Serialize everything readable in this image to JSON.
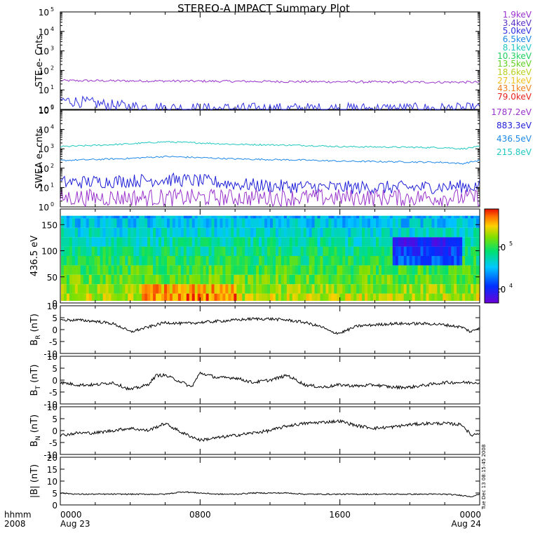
{
  "title": "STEREO-A IMPACT Summary Plot",
  "stamp": "Tue Dec 13 08:15:45 2008",
  "xaxis": {
    "row1_label": "hhmm",
    "row2_label": "2008",
    "ticks": [
      {
        "t": 0,
        "time": "0000",
        "date": "Aug 23"
      },
      {
        "t": 8,
        "time": "0800",
        "date": ""
      },
      {
        "t": 16,
        "time": "1600",
        "date": ""
      },
      {
        "t": 24,
        "time": "0000",
        "date": "Aug 24"
      }
    ]
  },
  "panels": {
    "ste": {
      "ylabel": "STE e- Cnts",
      "ytick_labels": [
        "10",
        "10",
        "10",
        "10",
        "10",
        "10"
      ],
      "ytick_exps": [
        "0",
        "1",
        "2",
        "3",
        "4",
        "5"
      ]
    },
    "swea": {
      "ylabel": "SWEA e- cnts",
      "ytick_labels": [
        "10",
        "10",
        "10",
        "10",
        "10",
        "10"
      ],
      "ytick_exps": [
        "0",
        "1",
        "2",
        "3",
        "4",
        "5"
      ]
    },
    "pad": {
      "ylabel": "436.5 eV",
      "yticks": [
        "0",
        "50",
        "100",
        "150"
      ],
      "colorbar_labels": [
        "10",
        "10"
      ],
      "colorbar_exps": [
        "5",
        "4"
      ]
    },
    "br": {
      "ylabel_main": "B",
      "ylabel_sub": "R",
      "ylabel_unit": " (nT)",
      "yticks": [
        "10",
        "5",
        "0",
        "-5",
        "-10"
      ]
    },
    "bt": {
      "ylabel_main": "B",
      "ylabel_sub": "T",
      "ylabel_unit": " (nT)",
      "yticks": [
        "10",
        "5",
        "0",
        "-5",
        "-10"
      ]
    },
    "bn": {
      "ylabel_main": "B",
      "ylabel_sub": "N",
      "ylabel_unit": " (nT)",
      "yticks": [
        "10",
        "5",
        "0",
        "-5",
        "-10"
      ]
    },
    "bmag": {
      "ylabel": "|B| (nT)",
      "yticks": [
        "20",
        "15",
        "10",
        "5",
        "0"
      ]
    }
  },
  "legend_ste": [
    {
      "label": "1.9keV",
      "color": "#9933cc"
    },
    {
      "label": "3.4keV",
      "color": "#5a2ec8"
    },
    {
      "label": "5.0keV",
      "color": "#3030e0"
    },
    {
      "label": "6.5keV",
      "color": "#1e88e8"
    },
    {
      "label": "8.1keV",
      "color": "#20c8c0"
    },
    {
      "label": "10.3keV",
      "color": "#20d060"
    },
    {
      "label": "13.5keV",
      "color": "#60d020"
    },
    {
      "label": "18.6keV",
      "color": "#b8d020"
    },
    {
      "label": "27.1keV",
      "color": "#f0c020"
    },
    {
      "label": "43.1keV",
      "color": "#f08020"
    },
    {
      "label": "79.0keV",
      "color": "#e82020"
    }
  ],
  "legend_swea": [
    {
      "label": "1787.2eV",
      "color": "#9933cc"
    },
    {
      "label": "883.3eV",
      "color": "#2020d8"
    },
    {
      "label": "436.5eV",
      "color": "#1e88e8"
    },
    {
      "label": "215.8eV",
      "color": "#20c8c0"
    }
  ],
  "chart_data": [
    {
      "type": "line",
      "name": "STE electron counts",
      "x_hours": [
        0,
        24
      ],
      "yscale": "log",
      "ylim_exp": [
        0,
        5
      ],
      "series": [
        {
          "name": "1.9keV",
          "color": "#9933cc",
          "x": [
            0,
            4,
            8,
            12,
            16,
            20,
            24
          ],
          "values": [
            30,
            29,
            28,
            27,
            26,
            25,
            25
          ]
        },
        {
          "name": "3.4keV",
          "color": "#3030e0",
          "x": [
            0,
            1,
            2,
            3,
            4,
            6,
            8,
            12,
            16,
            20,
            24
          ],
          "values": [
            3,
            2.5,
            2,
            1.6,
            1.4,
            1.2,
            1.1,
            1.1,
            1.1,
            1.1,
            1.1
          ]
        }
      ]
    },
    {
      "type": "line",
      "name": "SWEA electron counts",
      "x_hours": [
        0,
        24
      ],
      "yscale": "log",
      "ylim_exp": [
        0,
        5
      ],
      "series": [
        {
          "name": "215.8eV",
          "color": "#20c8c0",
          "x": [
            0,
            2,
            4,
            6,
            8,
            10,
            12,
            14,
            16,
            18,
            20,
            22,
            23,
            24
          ],
          "values": [
            1300,
            1500,
            1800,
            2300,
            2000,
            1700,
            1600,
            1500,
            1300,
            1250,
            1200,
            1150,
            1000,
            1300
          ]
        },
        {
          "name": "436.5eV",
          "color": "#1e88e8",
          "x": [
            0,
            2,
            4,
            6,
            8,
            10,
            12,
            14,
            16,
            18,
            20,
            22,
            23,
            24
          ],
          "values": [
            250,
            280,
            320,
            400,
            350,
            300,
            280,
            260,
            230,
            220,
            210,
            200,
            170,
            250
          ]
        },
        {
          "name": "883.3eV",
          "color": "#2020d8",
          "x": [
            0,
            2,
            4,
            6,
            8,
            10,
            12,
            14,
            16,
            18,
            20,
            22,
            24
          ],
          "values": [
            18,
            20,
            22,
            26,
            22,
            15,
            12,
            11,
            10,
            10,
            10,
            11,
            12
          ]
        },
        {
          "name": "1787.2eV",
          "color": "#9933cc",
          "x": [
            0,
            4,
            8,
            12,
            16,
            20,
            24
          ],
          "values": [
            3,
            3,
            3,
            3,
            3,
            3,
            3
          ]
        }
      ]
    },
    {
      "type": "heatmap",
      "name": "436.5 eV pitch angle distribution",
      "x_hours": [
        0,
        24
      ],
      "ylim": [
        0,
        180
      ],
      "colorbar_log_range": [
        3.8,
        5.4
      ]
    },
    {
      "type": "line",
      "name": "BR",
      "ylim": [
        -10,
        10
      ],
      "x": [
        0,
        1,
        2,
        3,
        3.5,
        4,
        5,
        6,
        7,
        8,
        9,
        10,
        11,
        12,
        13,
        14,
        15,
        15.5,
        16,
        17,
        18,
        19,
        20,
        21,
        22,
        23,
        23.5,
        24
      ],
      "values": [
        4,
        4,
        3.5,
        2.5,
        1,
        -1,
        1,
        3,
        2.5,
        3,
        3.5,
        4,
        4.5,
        4.5,
        4,
        3,
        1,
        -1,
        -1.5,
        1.5,
        2,
        2.5,
        2.5,
        2.5,
        2,
        1,
        -1,
        1
      ]
    },
    {
      "type": "line",
      "name": "BT",
      "ylim": [
        -10,
        10
      ],
      "x": [
        0,
        1,
        2,
        3,
        4,
        5,
        5.5,
        6,
        7,
        7.5,
        8,
        9,
        10,
        11,
        12,
        13,
        14,
        15,
        16,
        17,
        18,
        19,
        20,
        21,
        22,
        23,
        24
      ],
      "values": [
        -1,
        -2,
        -2,
        -1,
        -4,
        -2,
        2,
        2,
        -1,
        -3,
        3,
        1,
        1,
        -1,
        0,
        2,
        -2,
        -3,
        -2,
        -2.5,
        -2,
        -3,
        -3,
        -2,
        -1,
        -1,
        -1
      ]
    },
    {
      "type": "line",
      "name": "BN",
      "ylim": [
        -10,
        10
      ],
      "x": [
        0,
        1,
        2,
        3,
        4,
        5,
        6,
        7,
        8,
        9,
        10,
        11,
        12,
        13,
        14,
        15,
        16,
        17,
        18,
        19,
        20,
        21,
        22,
        23,
        23.5,
        24
      ],
      "values": [
        -2,
        -1,
        -1,
        0,
        1,
        0,
        3,
        -1,
        -4,
        -3,
        -2,
        -1,
        0,
        2,
        3,
        3.5,
        4,
        2,
        1,
        1.5,
        2.5,
        3,
        3,
        2.5,
        -2,
        -1
      ]
    },
    {
      "type": "line",
      "name": "|B|",
      "ylim": [
        0,
        20
      ],
      "x": [
        0,
        1,
        2,
        3,
        4,
        5,
        6,
        7,
        8,
        9,
        10,
        11,
        12,
        13,
        14,
        15,
        16,
        17,
        18,
        19,
        20,
        21,
        22,
        23,
        23.5,
        24
      ],
      "values": [
        5,
        4.5,
        4.5,
        4.5,
        4.5,
        4.5,
        4.5,
        5.5,
        5,
        4.5,
        4.5,
        5,
        5,
        5,
        4.5,
        4.5,
        4.5,
        4.5,
        4.5,
        4.5,
        4.5,
        4.5,
        4.5,
        4,
        3.5,
        4.5
      ]
    }
  ]
}
